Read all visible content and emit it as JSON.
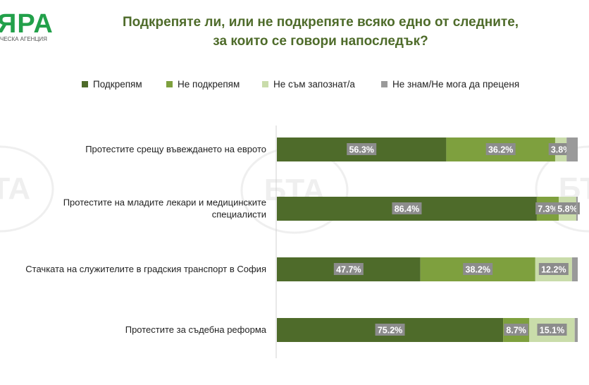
{
  "logo": {
    "text": "ЯРА",
    "subtitle": "ЧЕСКА АГЕНЦИЯ"
  },
  "title_line1": "Подкрепяте ли, или не подкрепяте всяко едно от следните,",
  "title_line2": "за които се говори напоследък?",
  "watermark": "БТА",
  "colors": {
    "title": "#4e6b2a",
    "series": [
      "#4e6b2a",
      "#7ea03e",
      "#c9dcaa",
      "#9a9a9a"
    ],
    "label_bg": "#8c8c8c",
    "label_text": "#ffffff"
  },
  "chart_data": {
    "type": "bar",
    "orientation": "horizontal",
    "stacked": true,
    "title": "Подкрепяте ли, или не подкрепяте всяко едно от следните, за които се говори напоследък?",
    "categories": [
      "Протестите срещу въвеждането на еврото",
      "Протестите на младите лекари и медицинските специалисти",
      "Стачката на служителите в градския транспорт в София",
      "Протестите за съдебна реформа"
    ],
    "category_lines": [
      [
        "Протестите срещу въвеждането на еврото"
      ],
      [
        "Протестите на младите лекари и медицинските",
        "специалисти"
      ],
      [
        "Стачката на служителите в градския транспорт в София"
      ],
      [
        "Протестите за съдебна реформа"
      ]
    ],
    "series": [
      {
        "name": "Подкрепям",
        "values": [
          56.3,
          86.4,
          47.7,
          75.2
        ]
      },
      {
        "name": "Не подкрепям",
        "values": [
          36.2,
          7.3,
          38.2,
          8.7
        ]
      },
      {
        "name": "Не съм запознат/а",
        "values": [
          3.8,
          5.8,
          12.2,
          15.1
        ]
      },
      {
        "name": "Не знам/Не мога да преценя",
        "values": [
          3.7,
          0.5,
          1.9,
          1.0
        ]
      }
    ],
    "data_labels": [
      [
        "56.3%",
        "36.2%",
        "3.8%",
        ""
      ],
      [
        "86.4%",
        "7.3%",
        "5.8%",
        ""
      ],
      [
        "47.7%",
        "38.2%",
        "12.2%",
        ""
      ],
      [
        "75.2%",
        "8.7%",
        "15.1%",
        ""
      ]
    ],
    "xlim": [
      0,
      100
    ],
    "legend": "top",
    "grid": false
  }
}
